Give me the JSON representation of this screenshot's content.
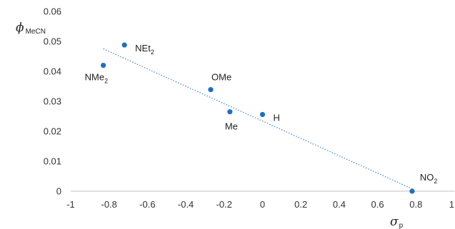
{
  "chart_data": {
    "type": "scatter",
    "title": "",
    "xlabel": {
      "symbol": "σ",
      "subscript": "p"
    },
    "ylabel": {
      "symbol": "ϕ",
      "subscript": "MeCN"
    },
    "xlim": [
      -1,
      1
    ],
    "ylim": [
      0,
      0.06
    ],
    "x_ticks": [
      -1,
      -0.8,
      -0.6,
      -0.4,
      -0.2,
      0,
      0.2,
      0.4,
      0.6,
      0.8,
      1
    ],
    "x_tick_labels": [
      "-1",
      "-0.8",
      "-0.6",
      "-0.4",
      "-0.2",
      "0",
      "0.2",
      "0.4",
      "0.6",
      "0.8",
      "1"
    ],
    "y_ticks": [
      0,
      0.01,
      0.02,
      0.03,
      0.04,
      0.05,
      0.06
    ],
    "y_tick_labels": [
      "0",
      "0.01",
      "0.02",
      "0.03",
      "0.04",
      "0.05",
      "0.06"
    ],
    "grid": false,
    "points": [
      {
        "x": -0.83,
        "y": 0.042,
        "label": "NMe",
        "sub": "2",
        "label_pos": "below-left"
      },
      {
        "x": -0.72,
        "y": 0.0488,
        "label": "NEt",
        "sub": "2",
        "label_pos": "right"
      },
      {
        "x": -0.27,
        "y": 0.0339,
        "label": "OMe",
        "sub": "",
        "label_pos": "above"
      },
      {
        "x": -0.17,
        "y": 0.0265,
        "label": "Me",
        "sub": "",
        "label_pos": "below"
      },
      {
        "x": 0.0,
        "y": 0.0256,
        "label": "H",
        "sub": "",
        "label_pos": "right"
      },
      {
        "x": 0.78,
        "y": 0.0,
        "label": "NO",
        "sub": "2",
        "label_pos": "above-right"
      }
    ],
    "trendline": {
      "style": "dotted",
      "from": {
        "x": -0.83,
        "y": 0.0475
      },
      "to": {
        "x": 0.78,
        "y": 0.0008
      }
    },
    "colors": {
      "point": "#1f6fbf",
      "trendline": "#4a90d9",
      "axis": "#bfbfbf",
      "text": "#222222"
    }
  }
}
